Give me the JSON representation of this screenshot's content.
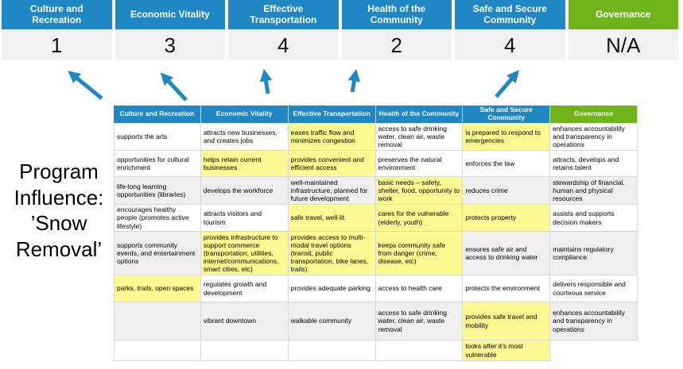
{
  "program_label": {
    "text": "Program\nInfluence:\n’Snow\nRemoval’"
  },
  "colors": {
    "pillar_blue": "#1F87C4",
    "governance_green": "#6FB41A",
    "highlight_yellow": "#FBF992",
    "banded_row_gray": "#EFEFEF",
    "score_band_gray": "#F1F1F1",
    "arrow_blue": "#1F87C4"
  },
  "scoreboard": {
    "columns": [
      {
        "label": "Culture and Recreation",
        "score": "1"
      },
      {
        "label": "Economic Vitality",
        "score": "3"
      },
      {
        "label": "Effective Transportation",
        "score": "4"
      },
      {
        "label": "Health of the Community",
        "score": "2"
      },
      {
        "label": "Safe and Secure Community",
        "score": "4"
      },
      {
        "label": "Governance",
        "score": "N/A"
      }
    ]
  },
  "arrows": {
    "count": 5,
    "description": "blue arrows from matrix header area up to score cells"
  },
  "matrix": {
    "headers": [
      "Culture and Recreation",
      "Economic Vitality",
      "Effective Transportation",
      "Health of the Community",
      "Safe and Secure Community",
      "Governance"
    ],
    "rows": [
      {
        "cells": [
          {
            "text": "supports the arts",
            "bg": "white"
          },
          {
            "text": "attracts new businesses, and creates jobs",
            "bg": "white"
          },
          {
            "text": "eases traffic flow and minimizes congestion",
            "bg": "yellow"
          },
          {
            "text": "access to safe drinking water, clean air, waste removal",
            "bg": "white"
          },
          {
            "text": "is prepared to respond to emergencies",
            "bg": "yellow"
          },
          {
            "text": "enhances accountability and transparency in operations",
            "bg": "white"
          }
        ]
      },
      {
        "cells": [
          {
            "text": "opportunities for cultural enrichment",
            "bg": "white"
          },
          {
            "text": "helps retain current businesses",
            "bg": "yellow"
          },
          {
            "text": "provides convenient and efficient access",
            "bg": "yellow"
          },
          {
            "text": "preserves the natural environment",
            "bg": "white"
          },
          {
            "text": "enforces the law",
            "bg": "white"
          },
          {
            "text": "attracts, develops and retains talent",
            "bg": "white"
          }
        ]
      },
      {
        "cells": [
          {
            "text": "life-long learning opportunities (libraries)",
            "bg": "gray"
          },
          {
            "text": "develops the workforce",
            "bg": "gray"
          },
          {
            "text": "well-maintained infrastructure, planned for future development",
            "bg": "gray"
          },
          {
            "text": "basic needs – safety, shelter, food, opportunity to work",
            "bg": "yellow"
          },
          {
            "text": "reduces crime",
            "bg": "gray"
          },
          {
            "text": "stewardship of financial, human and physical resources",
            "bg": "gray"
          }
        ]
      },
      {
        "cells": [
          {
            "text": "encourages healthy people (promotes active lifestyle)",
            "bg": "white"
          },
          {
            "text": "attracts visitors and tourism",
            "bg": "white"
          },
          {
            "text": "safe travel, well-lit",
            "bg": "yellow"
          },
          {
            "text": "cares for the vulnerable (elderly, youth)",
            "bg": "yellow"
          },
          {
            "text": "protects property",
            "bg": "yellow"
          },
          {
            "text": "assists and supports decision makers",
            "bg": "white"
          }
        ]
      },
      {
        "cells": [
          {
            "text": "supports community events, and entertainment options",
            "bg": "gray"
          },
          {
            "text": "provides infrastructure to support commerce (transportation, utilities, internet/communications, smart cities, etc)",
            "bg": "yellow"
          },
          {
            "text": "provides access to multi-modal travel options (transit, public transportation, bike lanes, trails)",
            "bg": "yellow"
          },
          {
            "text": "keeps community safe from danger (crime, disease, etc)",
            "bg": "yellow"
          },
          {
            "text": "ensures safe air and access to drinking water",
            "bg": "gray"
          },
          {
            "text": "maintains regulatory compliance",
            "bg": "gray"
          }
        ]
      },
      {
        "cells": [
          {
            "text": "parks, trails, open spaces",
            "bg": "yellow"
          },
          {
            "text": "regulates growth and development",
            "bg": "white"
          },
          {
            "text": "provides adequate parking",
            "bg": "white"
          },
          {
            "text": "access to health care",
            "bg": "white"
          },
          {
            "text": "protects the environment",
            "bg": "white"
          },
          {
            "text": "delivers responsible and courteous service",
            "bg": "white"
          }
        ]
      },
      {
        "cells": [
          {
            "text": "",
            "bg": "gray"
          },
          {
            "text": "vibrant downtown",
            "bg": "gray"
          },
          {
            "text": "walkable community",
            "bg": "gray"
          },
          {
            "text": "access to safe drinking water, clean air, waste removal",
            "bg": "gray"
          },
          {
            "text": "provides safe travel and mobility",
            "bg": "yellow"
          },
          {
            "text": "enhances accountability and transparency in operations",
            "bg": "gray"
          }
        ]
      },
      {
        "cells": [
          {
            "text": "",
            "bg": "white"
          },
          {
            "text": "",
            "bg": "white"
          },
          {
            "text": "",
            "bg": "white"
          },
          {
            "text": "",
            "bg": "white"
          },
          {
            "text": "looks after it’s most vulnerable",
            "bg": "yellow"
          },
          {
            "text": "",
            "bg": "none"
          }
        ]
      }
    ]
  }
}
